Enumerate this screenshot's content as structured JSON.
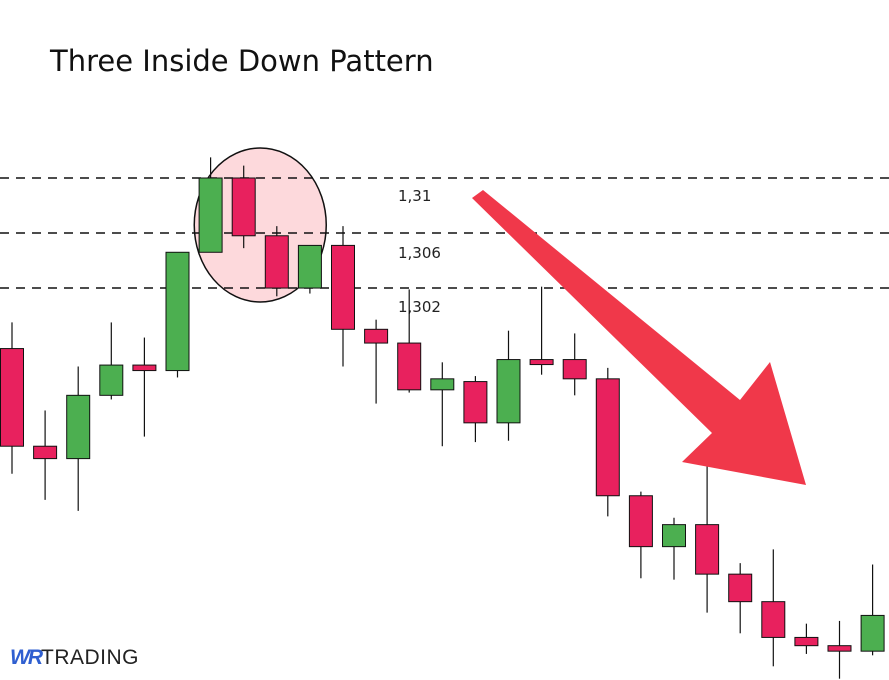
{
  "chart_data": {
    "type": "candlestick",
    "title": "Three Inside Down Pattern",
    "levels": [
      {
        "value": 1.31,
        "label": "1,31"
      },
      {
        "value": 1.306,
        "label": "1,306"
      },
      {
        "value": 1.302,
        "label": "1,302"
      }
    ],
    "colors": {
      "bullish": "#4caf50",
      "bearish": "#e8215e",
      "arrow": "#f0384a",
      "highlight": "#fdd9dc"
    },
    "highlight_candles": [
      7,
      8,
      9,
      10
    ],
    "annotation": "downward trend arrow",
    "candles": [
      {
        "o": 1.2976,
        "h": 1.2995,
        "l": 1.2885,
        "c": 1.2905
      },
      {
        "o": 1.2905,
        "h": 1.2931,
        "l": 1.2866,
        "c": 1.2896
      },
      {
        "o": 1.2896,
        "h": 1.2963,
        "l": 1.2858,
        "c": 1.2942
      },
      {
        "o": 1.2942,
        "h": 1.2995,
        "l": 1.2939,
        "c": 1.2964
      },
      {
        "o": 1.2964,
        "h": 1.2984,
        "l": 1.2912,
        "c": 1.296
      },
      {
        "o": 1.296,
        "h": 1.3046,
        "l": 1.2955,
        "c": 1.3046
      },
      {
        "o": 1.3046,
        "h": 1.3115,
        "l": 1.3046,
        "c": 1.31
      },
      {
        "o": 1.31,
        "h": 1.3109,
        "l": 1.3049,
        "c": 1.3058
      },
      {
        "o": 1.3058,
        "h": 1.3065,
        "l": 1.3014,
        "c": 1.302
      },
      {
        "o": 1.302,
        "h": 1.3051,
        "l": 1.3016,
        "c": 1.3051
      },
      {
        "o": 1.3051,
        "h": 1.3065,
        "l": 1.2963,
        "c": 1.299
      },
      {
        "o": 1.299,
        "h": 1.2997,
        "l": 1.2936,
        "c": 1.298
      },
      {
        "o": 1.298,
        "h": 1.3019,
        "l": 1.2944,
        "c": 1.2946
      },
      {
        "o": 1.2946,
        "h": 1.2966,
        "l": 1.2905,
        "c": 1.2954
      },
      {
        "o": 1.2952,
        "h": 1.2956,
        "l": 1.2908,
        "c": 1.2922
      },
      {
        "o": 1.2922,
        "h": 1.2989,
        "l": 1.2909,
        "c": 1.2968
      },
      {
        "o": 1.2968,
        "h": 1.3021,
        "l": 1.2957,
        "c": 1.2967
      },
      {
        "o": 1.2968,
        "h": 1.2987,
        "l": 1.2942,
        "c": 1.2954
      },
      {
        "o": 1.2954,
        "h": 1.2962,
        "l": 1.2854,
        "c": 1.2869
      },
      {
        "o": 1.2869,
        "h": 1.2872,
        "l": 1.2809,
        "c": 1.2832
      },
      {
        "o": 1.2832,
        "h": 1.2853,
        "l": 1.2808,
        "c": 1.2848
      },
      {
        "o": 1.2848,
        "h": 1.2899,
        "l": 1.2784,
        "c": 1.2812
      },
      {
        "o": 1.2812,
        "h": 1.282,
        "l": 1.2769,
        "c": 1.2792
      },
      {
        "o": 1.2792,
        "h": 1.283,
        "l": 1.2745,
        "c": 1.2766
      },
      {
        "o": 1.2766,
        "h": 1.2776,
        "l": 1.2754,
        "c": 1.276
      },
      {
        "o": 1.276,
        "h": 1.2778,
        "l": 1.2736,
        "c": 1.2756
      },
      {
        "o": 1.2756,
        "h": 1.2819,
        "l": 1.2753,
        "c": 1.2782
      }
    ]
  },
  "logo": {
    "wr": "WR",
    "trading": "TRADING"
  }
}
